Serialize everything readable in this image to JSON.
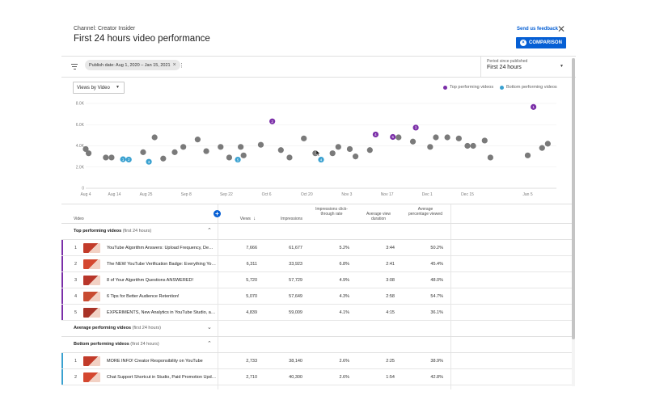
{
  "header": {
    "channel": "Channel: Creator Insider",
    "title": "First 24 hours video performance",
    "feedback": "Send us feedback",
    "comparison": "COMPARISON",
    "close_icon": "close-icon"
  },
  "filters": {
    "chip": "Publish date: Aug 1, 2020 – Jan 15, 2021",
    "period_label": "Period since published",
    "period_value": "First 24 hours"
  },
  "chart_controls": {
    "metric": "Views by Video",
    "legend_top": "Top performing videos",
    "legend_bottom": "Bottom performing videos"
  },
  "colors": {
    "accent": "#065fd4",
    "top": "#7b2fa8",
    "bottom": "#3aa1d0",
    "average": "#7a7a7a",
    "red": "#d93025"
  },
  "chart_data": {
    "type": "scatter",
    "xlabel": "",
    "ylabel": "",
    "ylim": [
      0,
      8000
    ],
    "yticks": [
      "8.0K",
      "6.0K",
      "4.0K",
      "2.0K",
      "0"
    ],
    "xticks": [
      "Aug 4",
      "Aug 14",
      "Aug 25",
      "Sep 8",
      "Sep 22",
      "Oct 6",
      "Oct 20",
      "Nov 3",
      "Nov 17",
      "Dec 1",
      "Dec 15",
      "Jan 5"
    ],
    "series": [
      {
        "name": "Top performing videos",
        "points": [
          {
            "x": "Aug 4",
            "y": 3700
          },
          {
            "x": "Aug 5",
            "y": 3300
          },
          {
            "x": "Aug 11",
            "y": 2900
          },
          {
            "x": "Aug 13",
            "y": 2900
          },
          {
            "x": "Aug 24",
            "y": 3400
          },
          {
            "x": "Aug 28",
            "y": 4800
          },
          {
            "x": "Aug 31",
            "y": 2800
          },
          {
            "x": "Sep 4",
            "y": 3400
          },
          {
            "x": "Sep 7",
            "y": 3900
          },
          {
            "x": "Sep 12",
            "y": 4600
          },
          {
            "x": "Sep 15",
            "y": 3500
          },
          {
            "x": "Sep 20",
            "y": 3900
          },
          {
            "x": "Sep 23",
            "y": 2900
          },
          {
            "x": "Sep 27",
            "y": 3900
          },
          {
            "x": "Sep 28",
            "y": 3100
          },
          {
            "x": "Oct 4",
            "y": 4100
          },
          {
            "x": "Oct 11",
            "y": 3600
          },
          {
            "x": "Oct 14",
            "y": 2900
          },
          {
            "x": "Oct 19",
            "y": 4700
          },
          {
            "x": "Oct 23",
            "y": 3300
          },
          {
            "x": "Oct 29",
            "y": 3300
          },
          {
            "x": "Oct 31",
            "y": 3900
          },
          {
            "x": "Nov 4",
            "y": 3700
          },
          {
            "x": "Nov 6",
            "y": 3000
          },
          {
            "x": "Nov 11",
            "y": 3600
          },
          {
            "x": "Nov 21",
            "y": 4800
          },
          {
            "x": "Nov 26",
            "y": 4400
          },
          {
            "x": "Dec 2",
            "y": 3900
          },
          {
            "x": "Dec 4",
            "y": 4800
          },
          {
            "x": "Dec 8",
            "y": 4800
          },
          {
            "x": "Dec 12",
            "y": 4700
          },
          {
            "x": "Dec 15",
            "y": 4000
          },
          {
            "x": "Dec 17",
            "y": 4000
          },
          {
            "x": "Dec 21",
            "y": 4500
          },
          {
            "x": "Dec 23",
            "y": 2900
          },
          {
            "x": "Jan 5",
            "y": 3100
          },
          {
            "x": "Jan 10",
            "y": 3800
          },
          {
            "x": "Jan 12",
            "y": 4200
          }
        ]
      },
      {
        "name": "Top performing videos (ranked)",
        "points": [
          {
            "x": "Jan 7",
            "y": 7666,
            "label": "1"
          },
          {
            "x": "Oct 8",
            "y": 6311,
            "label": "2"
          },
          {
            "x": "Nov 27",
            "y": 5720,
            "label": "3"
          },
          {
            "x": "Nov 13",
            "y": 5070,
            "label": "4"
          },
          {
            "x": "Nov 19",
            "y": 4839,
            "label": "5"
          }
        ]
      },
      {
        "name": "Bottom performing videos",
        "points": [
          {
            "x": "Aug 17",
            "y": 2733,
            "label": "1"
          },
          {
            "x": "Aug 19",
            "y": 2710,
            "label": "2"
          },
          {
            "x": "Aug 26",
            "y": 2500,
            "label": "3"
          },
          {
            "x": "Oct 25",
            "y": 2700,
            "label": "4"
          },
          {
            "x": "Sep 26",
            "y": 2700,
            "label": "5"
          }
        ]
      }
    ]
  },
  "table": {
    "columns": {
      "video": "Video",
      "views": "Views",
      "impressions": "Impressions",
      "ctr": "Impressions click-through rate",
      "avd": "Average view duration",
      "apv": "Average percentage viewed"
    },
    "sections": {
      "top": {
        "label": "Top performing videos",
        "sub": "(first 24 hours)"
      },
      "average": {
        "label": "Average performing videos",
        "sub": "(first 24 hours)"
      },
      "bottom": {
        "label": "Bottom performing videos",
        "sub": "(first 24 hours)"
      }
    },
    "top_rows": [
      {
        "rank": "1",
        "title": "YouTube Algorithm Answers: Upload Frequency, Demon...",
        "views": "7,666",
        "impressions": "61,677",
        "ctr": "5.2%",
        "avd": "3:44",
        "apv": "50.2%"
      },
      {
        "rank": "2",
        "title": "The NEW YouTube Verification Badge: Everything You N...",
        "views": "6,311",
        "impressions": "33,923",
        "ctr": "6.8%",
        "avd": "2:41",
        "apv": "45.4%"
      },
      {
        "rank": "3",
        "title": "8 of Your Algorithm Questions ANSWERED!",
        "views": "5,720",
        "impressions": "57,729",
        "ctr": "4.9%",
        "avd": "3:08",
        "apv": "48.0%"
      },
      {
        "rank": "4",
        "title": "6 Tips for Better Audience Retention!",
        "views": "5,070",
        "impressions": "57,649",
        "ctr": "4.3%",
        "avd": "2:58",
        "apv": "54.7%"
      },
      {
        "rank": "5",
        "title": "EXPERIMENTS, New Analytics in YouTube Studio, and A...",
        "views": "4,839",
        "impressions": "59,009",
        "ctr": "4.1%",
        "avd": "4:15",
        "apv": "36.1%"
      }
    ],
    "bottom_rows": [
      {
        "rank": "1",
        "title": "MORE INFO! Creator Responsibility on YouTube",
        "views": "2,733",
        "impressions": "38,140",
        "ctr": "2.6%",
        "avd": "2:25",
        "apv": "38.9%"
      },
      {
        "rank": "2",
        "title": "Chat Support Shortcut in Studio, Paid Promotion Updat...",
        "views": "2,710",
        "impressions": "40,300",
        "ctr": "2.6%",
        "avd": "1:54",
        "apv": "42.8%"
      }
    ]
  }
}
